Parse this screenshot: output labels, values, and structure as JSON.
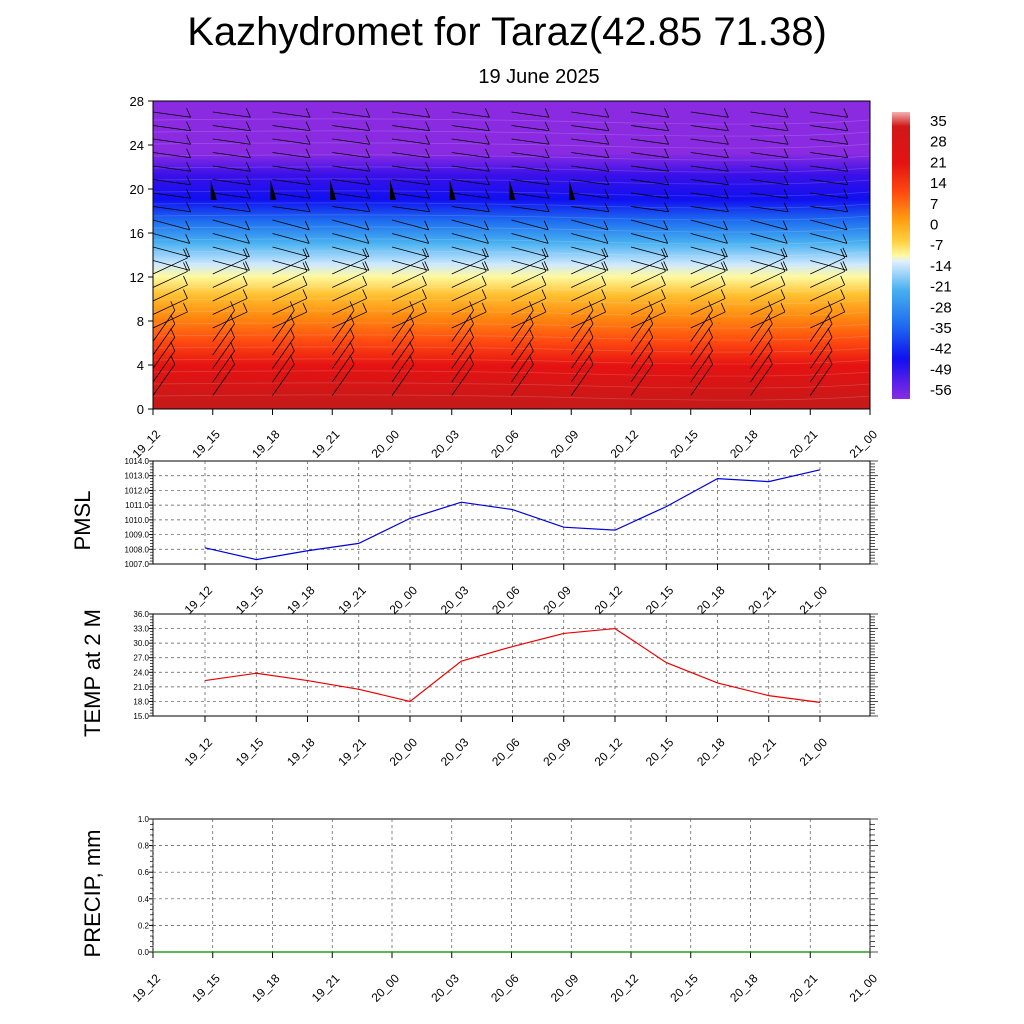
{
  "title": "Kazhydromet for Taraz(42.85 71.38)",
  "subtitle": "19 June 2025",
  "chart_data": [
    {
      "type": "heatmap",
      "name": "vertical-cross-section",
      "x_ticks": [
        "19_12",
        "19_15",
        "19_18",
        "19_21",
        "20_00",
        "20_03",
        "20_06",
        "20_09",
        "20_12",
        "20_15",
        "20_18",
        "20_21",
        "21_00"
      ],
      "y_ticks": [
        "0",
        "4",
        "8",
        "12",
        "16",
        "20",
        "24",
        "28"
      ],
      "ylim": [
        0,
        28
      ],
      "colorbar_labels": [
        "35",
        "28",
        "21",
        "14",
        "7",
        "0",
        "-7",
        "-14",
        "-21",
        "-28",
        "-35",
        "-42",
        "-49",
        "-56"
      ],
      "colorbar_range": [
        -60,
        38
      ],
      "colors": {
        "purple": "#8a2be2",
        "blue": "#1010f0",
        "lightblue": "#3aa0f0",
        "paleyellow": "#fff9a0",
        "orange": "#ff9a10",
        "red": "#e61010",
        "darkred": "#c81818"
      },
      "overlay": "wind barbs"
    },
    {
      "type": "line",
      "name": "pmsl",
      "ylabel": "PMSL",
      "x_ticks": [
        "19_12",
        "19_15",
        "19_18",
        "19_21",
        "20_00",
        "20_03",
        "20_06",
        "20_09",
        "20_12",
        "20_15",
        "20_18",
        "20_21",
        "21_00"
      ],
      "y_ticks": [
        "1014.0",
        "1013.0",
        "1012.0",
        "1011.0",
        "1010.0",
        "1009.0",
        "1008.0",
        "1007.0"
      ],
      "ylim": [
        1007,
        1014
      ],
      "values": [
        1008.1,
        1007.3,
        1007.9,
        1008.4,
        1010.1,
        1011.2,
        1010.7,
        1009.5,
        1009.3,
        1010.9,
        1012.8,
        1012.6,
        1013.4
      ],
      "color": "#0000dd"
    },
    {
      "type": "line",
      "name": "temp",
      "ylabel": "TEMP at 2 M",
      "x_ticks": [
        "19_12",
        "19_15",
        "19_18",
        "19_21",
        "20_00",
        "20_03",
        "20_06",
        "20_09",
        "20_12",
        "20_15",
        "20_18",
        "20_21",
        "21_00"
      ],
      "y_ticks": [
        "36.0",
        "33.0",
        "30.0",
        "27.0",
        "24.0",
        "21.0",
        "18.0",
        "15.0"
      ],
      "ylim": [
        15,
        36
      ],
      "values": [
        22.3,
        23.8,
        22.3,
        20.5,
        18.0,
        26.3,
        29.3,
        32.0,
        33.0,
        26.0,
        21.8,
        19.2,
        17.8
      ],
      "color": "#ee0000"
    },
    {
      "type": "line",
      "name": "precip",
      "ylabel": "PRECIP, mm",
      "x_ticks": [
        "19_12",
        "19_15",
        "19_18",
        "19_21",
        "20_00",
        "20_03",
        "20_06",
        "20_09",
        "20_12",
        "20_15",
        "20_18",
        "20_21",
        "21_00"
      ],
      "y_ticks": [
        "1.0",
        "0.8",
        "0.6",
        "0.4",
        "0.2",
        "0.0"
      ],
      "ylim": [
        0,
        1
      ],
      "values": [
        0,
        0,
        0,
        0,
        0,
        0,
        0,
        0,
        0,
        0,
        0,
        0,
        0
      ],
      "color": "#008800"
    }
  ]
}
